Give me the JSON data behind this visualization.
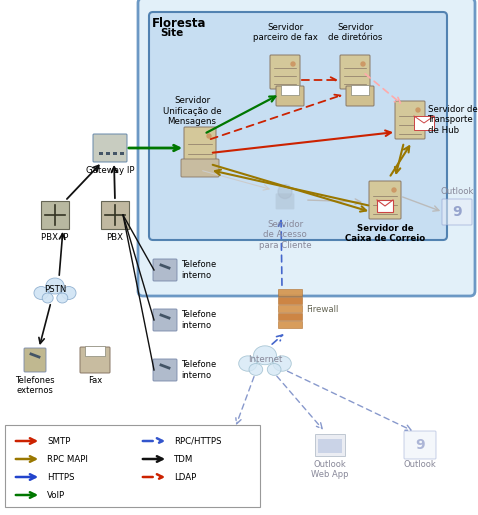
{
  "floresta_label": "Floresta",
  "site_label": "Site",
  "bg_floresta": "#ddeeff",
  "bg_site": "#c5dcf0",
  "legend_items_left": [
    {
      "label": "SMTP",
      "color": "#cc2200",
      "style": "solid"
    },
    {
      "label": "RPC MAPI",
      "color": "#997700",
      "style": "solid"
    },
    {
      "label": "HTTPS",
      "color": "#2244cc",
      "style": "solid"
    },
    {
      "label": "VoIP",
      "color": "#007700",
      "style": "solid"
    }
  ],
  "legend_items_right": [
    {
      "label": "RPC/HTTPS",
      "color": "#3355cc",
      "style": "dotted"
    },
    {
      "label": "TDM",
      "color": "#111111",
      "style": "solid"
    },
    {
      "label": "LDAP",
      "color": "#cc2200",
      "style": "dotted"
    }
  ]
}
